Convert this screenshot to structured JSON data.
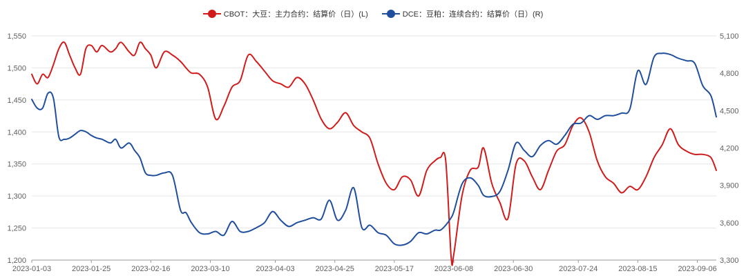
{
  "chart_data": {
    "type": "line",
    "title": "",
    "legend": {
      "position": "top-center",
      "items": [
        {
          "name": "CBOT：大豆：主力合约：结算价（日）(L)",
          "color": "#d11b1b"
        },
        {
          "name": "DCE：豆粕：连续合约：结算价（日）(R)",
          "color": "#1f4e9c"
        }
      ]
    },
    "x_ticks": [
      "2023-01-03",
      "2023-01-25",
      "2023-02-16",
      "2023-03-10",
      "2023-04-03",
      "2023-04-25",
      "2023-05-17",
      "2023-06-08",
      "2023-06-30",
      "2023-07-24",
      "2023-08-15",
      "2023-09-06"
    ],
    "y_left": {
      "min": 1200,
      "max": 1550,
      "ticks": [
        "1,200",
        "1,250",
        "1,300",
        "1,350",
        "1,400",
        "1,450",
        "1,500",
        "1,550"
      ]
    },
    "y_right": {
      "min": 3300,
      "max": 5100,
      "ticks": [
        "3,300",
        "3,600",
        "3,900",
        "4,200",
        "4,500",
        "4,800",
        "5,100"
      ]
    },
    "grid": "horizontal",
    "series": [
      {
        "name": "CBOT：大豆：主力合约：结算价（日）(L)",
        "axis": "left",
        "color": "#d11b1b",
        "x": [
          "2023-01-03",
          "2023-01-05",
          "2023-01-07",
          "2023-01-09",
          "2023-01-11",
          "2023-01-13",
          "2023-01-15",
          "2023-01-17",
          "2023-01-19",
          "2023-01-21",
          "2023-01-23",
          "2023-01-25",
          "2023-01-27",
          "2023-01-29",
          "2023-02-01",
          "2023-02-03",
          "2023-02-05",
          "2023-02-08",
          "2023-02-10",
          "2023-02-12",
          "2023-02-14",
          "2023-02-16",
          "2023-02-18",
          "2023-02-21",
          "2023-02-24",
          "2023-02-27",
          "2023-03-01",
          "2023-03-03",
          "2023-03-06",
          "2023-03-09",
          "2023-03-12",
          "2023-03-15",
          "2023-03-18",
          "2023-03-21",
          "2023-03-24",
          "2023-03-27",
          "2023-03-30",
          "2023-04-02",
          "2023-04-05",
          "2023-04-08",
          "2023-04-11",
          "2023-04-14",
          "2023-04-17",
          "2023-04-20",
          "2023-04-23",
          "2023-04-26",
          "2023-04-29",
          "2023-05-02",
          "2023-05-05",
          "2023-05-08",
          "2023-05-11",
          "2023-05-14",
          "2023-05-17",
          "2023-05-20",
          "2023-05-23",
          "2023-05-26",
          "2023-05-29",
          "2023-06-01",
          "2023-06-03",
          "2023-06-05",
          "2023-06-07",
          "2023-06-08",
          "2023-06-11",
          "2023-06-14",
          "2023-06-17",
          "2023-06-19",
          "2023-06-22",
          "2023-06-25",
          "2023-06-28",
          "2023-07-01",
          "2023-07-04",
          "2023-07-07",
          "2023-07-10",
          "2023-07-13",
          "2023-07-16",
          "2023-07-19",
          "2023-07-22",
          "2023-07-25",
          "2023-07-28",
          "2023-07-31",
          "2023-08-03",
          "2023-08-06",
          "2023-08-09",
          "2023-08-12",
          "2023-08-15",
          "2023-08-18",
          "2023-08-21",
          "2023-08-24",
          "2023-08-27",
          "2023-08-30",
          "2023-09-02",
          "2023-09-05",
          "2023-09-08",
          "2023-09-11",
          "2023-09-13"
        ],
        "values": [
          1490,
          1475,
          1490,
          1485,
          1505,
          1530,
          1540,
          1520,
          1500,
          1490,
          1530,
          1535,
          1525,
          1535,
          1525,
          1530,
          1540,
          1525,
          1520,
          1540,
          1530,
          1520,
          1500,
          1525,
          1520,
          1510,
          1500,
          1492,
          1490,
          1470,
          1420,
          1440,
          1470,
          1480,
          1520,
          1510,
          1495,
          1480,
          1475,
          1470,
          1485,
          1475,
          1450,
          1420,
          1405,
          1415,
          1430,
          1410,
          1400,
          1390,
          1350,
          1320,
          1310,
          1330,
          1325,
          1300,
          1340,
          1355,
          1360,
          1355,
          1205,
          1210,
          1300,
          1340,
          1345,
          1375,
          1320,
          1290,
          1265,
          1350,
          1355,
          1330,
          1310,
          1340,
          1370,
          1380,
          1410,
          1422,
          1400,
          1355,
          1330,
          1320,
          1305,
          1315,
          1310,
          1330,
          1360,
          1380,
          1405,
          1380,
          1370,
          1365,
          1365,
          1360,
          1340
        ]
      },
      {
        "name": "DCE：豆粕：连续合约：结算价（日）(R)",
        "axis": "right",
        "color": "#1f4e9c",
        "x": [
          "2023-01-03",
          "2023-01-05",
          "2023-01-07",
          "2023-01-09",
          "2023-01-11",
          "2023-01-13",
          "2023-01-15",
          "2023-01-17",
          "2023-01-19",
          "2023-01-21",
          "2023-01-23",
          "2023-01-25",
          "2023-01-27",
          "2023-01-29",
          "2023-02-01",
          "2023-02-03",
          "2023-02-05",
          "2023-02-08",
          "2023-02-10",
          "2023-02-12",
          "2023-02-14",
          "2023-02-16",
          "2023-02-18",
          "2023-02-21",
          "2023-02-24",
          "2023-02-27",
          "2023-03-01",
          "2023-03-03",
          "2023-03-06",
          "2023-03-09",
          "2023-03-12",
          "2023-03-15",
          "2023-03-18",
          "2023-03-21",
          "2023-03-24",
          "2023-03-27",
          "2023-03-30",
          "2023-04-02",
          "2023-04-05",
          "2023-04-08",
          "2023-04-11",
          "2023-04-14",
          "2023-04-17",
          "2023-04-20",
          "2023-04-23",
          "2023-04-26",
          "2023-04-29",
          "2023-05-02",
          "2023-05-05",
          "2023-05-08",
          "2023-05-11",
          "2023-05-14",
          "2023-05-17",
          "2023-05-20",
          "2023-05-23",
          "2023-05-26",
          "2023-05-29",
          "2023-06-01",
          "2023-06-03",
          "2023-06-05",
          "2023-06-07",
          "2023-06-08",
          "2023-06-11",
          "2023-06-14",
          "2023-06-17",
          "2023-06-19",
          "2023-06-22",
          "2023-06-25",
          "2023-06-28",
          "2023-07-01",
          "2023-07-04",
          "2023-07-07",
          "2023-07-10",
          "2023-07-13",
          "2023-07-16",
          "2023-07-19",
          "2023-07-22",
          "2023-07-25",
          "2023-07-28",
          "2023-07-31",
          "2023-08-03",
          "2023-08-06",
          "2023-08-09",
          "2023-08-12",
          "2023-08-15",
          "2023-08-18",
          "2023-08-21",
          "2023-08-24",
          "2023-08-27",
          "2023-08-30",
          "2023-09-02",
          "2023-09-05",
          "2023-09-08",
          "2023-09-11",
          "2023-09-13"
        ],
        "values": [
          4590,
          4520,
          4520,
          4640,
          4600,
          4290,
          4270,
          4280,
          4310,
          4340,
          4330,
          4300,
          4280,
          4270,
          4240,
          4270,
          4200,
          4240,
          4180,
          4120,
          4000,
          3980,
          3980,
          4000,
          3980,
          3700,
          3680,
          3600,
          3520,
          3510,
          3530,
          3500,
          3610,
          3530,
          3530,
          3560,
          3600,
          3690,
          3620,
          3570,
          3600,
          3620,
          3640,
          3630,
          3780,
          3620,
          3700,
          3880,
          3560,
          3580,
          3520,
          3500,
          3430,
          3420,
          3450,
          3520,
          3510,
          3540,
          3540,
          3580,
          3640,
          3690,
          3910,
          3960,
          3900,
          3820,
          3810,
          3850,
          4020,
          4240,
          4180,
          4130,
          4220,
          4260,
          4230,
          4300,
          4390,
          4400,
          4460,
          4430,
          4460,
          4460,
          4480,
          4510,
          4820,
          4710,
          4930,
          4960,
          4950,
          4920,
          4900,
          4880,
          4700,
          4620,
          4450
        ]
      }
    ]
  }
}
